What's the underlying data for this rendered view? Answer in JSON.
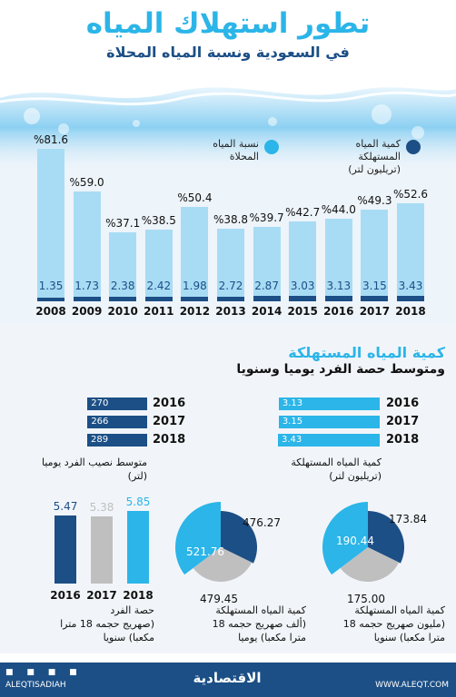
{
  "header": {
    "title": "تطور استهلاك المياه",
    "subtitle": "في السعودية ونسبة المياه المحلاة"
  },
  "legend": {
    "desalinated_label": "نسبة المياه المحلاة",
    "consumed_label": "كمية المياه المستهلكة",
    "consumed_unit": "(تريليون لتر)",
    "colors": {
      "desalinated": "#a8dcf4",
      "consumed": "#1c4f86"
    }
  },
  "section2": {
    "title": "كمية المياه المستهلكة",
    "subtitle": "ومتوسط حصة الفرد يوميا وسنويا"
  },
  "chart_data": [
    {
      "type": "bar",
      "categories": [
        "2008",
        "2009",
        "2010",
        "2011",
        "2012",
        "2013",
        "2014",
        "2015",
        "2016",
        "2017",
        "2018"
      ],
      "series": [
        {
          "name": "نسبة المياه المحلاة",
          "values": [
            81.6,
            59.0,
            37.1,
            38.5,
            50.4,
            38.8,
            39.7,
            42.7,
            44.0,
            49.3,
            52.6
          ],
          "labels": [
            "%81.6",
            "%59.0",
            "%37.1",
            "%38.5",
            "%50.4",
            "%38.8",
            "%39.7",
            "%42.7",
            "%44.0",
            "%49.3",
            "%52.6"
          ]
        },
        {
          "name": "كمية المياه المستهلكة",
          "values": [
            1.35,
            1.73,
            2.38,
            2.42,
            1.98,
            2.72,
            2.87,
            3.03,
            3.13,
            3.15,
            3.43
          ],
          "labels": [
            "1.35",
            "1.73",
            "2.38",
            "2.42",
            "1.98",
            "2.72",
            "2.87",
            "3.03",
            "3.13",
            "3.15",
            "3.43"
          ]
        }
      ]
    },
    {
      "type": "bar",
      "orientation": "horizontal",
      "categories": [
        "2016",
        "2017",
        "2018"
      ],
      "values": [
        3.13,
        3.15,
        3.43
      ],
      "labels": [
        "3.13",
        "3.15",
        "3.43"
      ],
      "caption": [
        "كمية المياه المستهلكة",
        "(تريليون لتر)"
      ]
    },
    {
      "type": "bar",
      "orientation": "horizontal",
      "categories": [
        "2016",
        "2017",
        "2018"
      ],
      "values": [
        270,
        266,
        289
      ],
      "labels": [
        "270",
        "266",
        "289"
      ],
      "caption": [
        "متوسط نصيب الفرد يوميا",
        "(لتر)"
      ]
    },
    {
      "type": "pie",
      "slices": [
        173.84,
        175.0,
        190.44
      ],
      "labels": [
        "173.84",
        "175.00",
        "190.44"
      ],
      "colors": [
        "#1c4f86",
        "#bfbfbf",
        "#2bb5e8"
      ],
      "caption": [
        "كمية المياه المستهلكة",
        "(مليون صهريج حجمه 18",
        "مترا مكعبا) سنويا"
      ]
    },
    {
      "type": "pie",
      "slices": [
        476.27,
        479.45,
        521.76
      ],
      "labels": [
        "476.27",
        "479.45",
        "521.76"
      ],
      "colors": [
        "#1c4f86",
        "#bfbfbf",
        "#2bb5e8"
      ],
      "caption": [
        "كمية المياه المستهلكة",
        "(ألف صهريج حجمه 18",
        "مترا مكعبا) يوميا"
      ]
    },
    {
      "type": "bar",
      "categories": [
        "2016",
        "2017",
        "2018"
      ],
      "values": [
        5.47,
        5.38,
        5.85
      ],
      "labels": [
        "5.47",
        "5.38",
        "5.85"
      ],
      "colors": [
        "#1c4f86",
        "#bfbfbf",
        "#2bb5e8"
      ],
      "caption": [
        "حصة الفرد",
        "(صهريج حجمه 18 مترا",
        "مكعبا) سنويا"
      ]
    }
  ],
  "footer": {
    "left_handle": "ALEQTISADIAH",
    "brand": "الاقتصادية",
    "right_url": "WWW.ALEQT.COM"
  }
}
